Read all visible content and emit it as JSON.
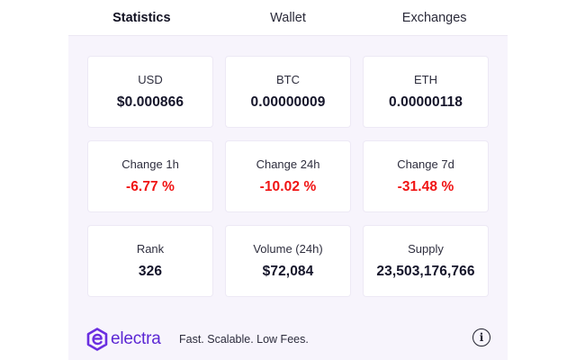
{
  "tabs": [
    {
      "label": "Statistics",
      "active": true
    },
    {
      "label": "Wallet",
      "active": false
    },
    {
      "label": "Exchanges",
      "active": false
    }
  ],
  "stats": [
    {
      "label": "USD",
      "value": "$0.000866",
      "negative": false
    },
    {
      "label": "BTC",
      "value": "0.00000009",
      "negative": false
    },
    {
      "label": "ETH",
      "value": "0.00000118",
      "negative": false
    },
    {
      "label": "Change 1h",
      "value": "-6.77 %",
      "negative": true
    },
    {
      "label": "Change 24h",
      "value": "-10.02 %",
      "negative": true
    },
    {
      "label": "Change 7d",
      "value": "-31.48 %",
      "negative": true
    },
    {
      "label": "Rank",
      "value": "326",
      "negative": false
    },
    {
      "label": "Volume (24h)",
      "value": "$72,084",
      "negative": false
    },
    {
      "label": "Supply",
      "value": "23,503,176,766",
      "negative": false
    }
  ],
  "footer": {
    "brand": "electra",
    "brand_icon": "electra-logo-icon",
    "tagline": "Fast. Scalable. Low Fees.",
    "info_icon": "info-icon",
    "info_glyph": "i"
  },
  "colors": {
    "accent": "#5b26d4",
    "negative": "#f01414",
    "panel_bg": "#f7f4fc",
    "card_bg": "#ffffff"
  }
}
